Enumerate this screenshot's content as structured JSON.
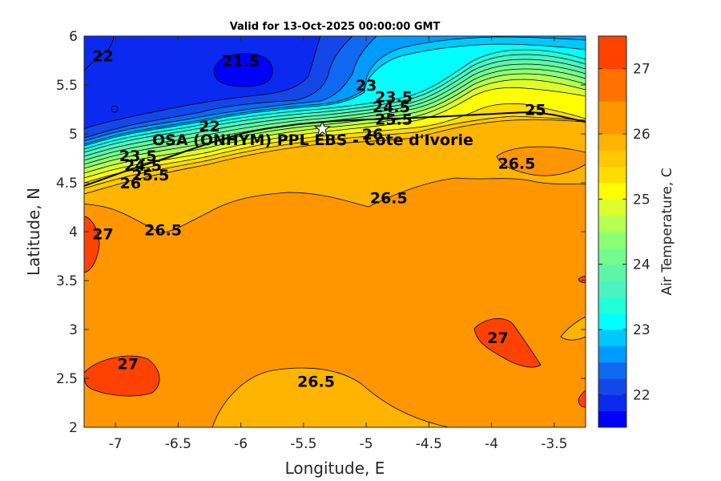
{
  "chart_data": {
    "type": "contour",
    "title": "Valid for 13-Oct-2025 00:00:00 GMT",
    "xlabel": "Longitude, E",
    "ylabel": "Latitude, N",
    "xlim": [
      -7.25,
      -3.25
    ],
    "ylim": [
      2,
      6
    ],
    "xticks": [
      "-7",
      "-6.5",
      "-6",
      "-5.5",
      "-5",
      "-4.5",
      "-4",
      "-3.5"
    ],
    "xtick_values": [
      -7,
      -6.5,
      -6,
      -5.5,
      -5,
      -4.5,
      -4,
      -3.5
    ],
    "yticks": [
      "2",
      "2.5",
      "3",
      "3.5",
      "4",
      "4.5",
      "5",
      "5.5",
      "6"
    ],
    "ytick_values": [
      2,
      2.5,
      3,
      3.5,
      4,
      4.5,
      5,
      5.5,
      6
    ],
    "colorbar": {
      "label": "Air Temperature, C",
      "range": [
        21.5,
        27.5
      ],
      "ticks": [
        "22",
        "23",
        "24",
        "25",
        "26",
        "27"
      ],
      "tick_values": [
        22,
        23,
        24,
        25,
        26,
        27
      ],
      "levels": [
        21.5,
        21.75,
        22,
        22.25,
        22.5,
        22.75,
        23,
        23.25,
        23.5,
        23.75,
        24,
        24.25,
        24.5,
        24.75,
        25,
        25.25,
        25.5,
        25.75,
        26,
        26.5,
        27,
        27.5
      ],
      "colors": [
        "#0000ff",
        "#0a2af0",
        "#1447e8",
        "#0f69f0",
        "#009bff",
        "#00c8ff",
        "#00ffff",
        "#22ffd8",
        "#4cf3c1",
        "#5ef5a8",
        "#74fb8d",
        "#8cff74",
        "#b6ff52",
        "#dcff2c",
        "#ffff00",
        "#ffdc00",
        "#ffc800",
        "#ffb400",
        "#ff9600",
        "#ff7200",
        "#ff4200"
      ]
    },
    "contour_labels": [
      {
        "text": "22",
        "lon": -7.1,
        "lat": 5.8
      },
      {
        "text": "21.5",
        "lon": -6.0,
        "lat": 5.75
      },
      {
        "text": "22",
        "lon": -6.25,
        "lat": 5.08
      },
      {
        "text": "23",
        "lon": -5.0,
        "lat": 5.5
      },
      {
        "text": "23.5",
        "lon": -4.78,
        "lat": 5.38
      },
      {
        "text": "24.5",
        "lon": -4.8,
        "lat": 5.28
      },
      {
        "text": "25.5",
        "lon": -4.78,
        "lat": 5.15
      },
      {
        "text": "26",
        "lon": -4.95,
        "lat": 5.0
      },
      {
        "text": "25",
        "lon": -3.65,
        "lat": 5.25
      },
      {
        "text": "26.5",
        "lon": -3.8,
        "lat": 4.7
      },
      {
        "text": "23.5",
        "lon": -6.82,
        "lat": 4.78
      },
      {
        "text": "24.5",
        "lon": -6.78,
        "lat": 4.68
      },
      {
        "text": "25.5",
        "lon": -6.72,
        "lat": 4.58
      },
      {
        "text": "26",
        "lon": -6.88,
        "lat": 4.5
      },
      {
        "text": "26.5",
        "lon": -4.82,
        "lat": 4.35
      },
      {
        "text": "26.5",
        "lon": -6.62,
        "lat": 4.02
      },
      {
        "text": "27",
        "lon": -7.1,
        "lat": 3.98
      },
      {
        "text": "27",
        "lon": -6.9,
        "lat": 2.65
      },
      {
        "text": "27",
        "lon": -3.95,
        "lat": 2.92
      },
      {
        "text": "26.5",
        "lon": -5.4,
        "lat": 2.47
      }
    ],
    "station": {
      "name": "OSA (ONHYM) PPL EBS - Cote d'Ivorie",
      "lon": -5.35,
      "lat": 5.05
    }
  }
}
